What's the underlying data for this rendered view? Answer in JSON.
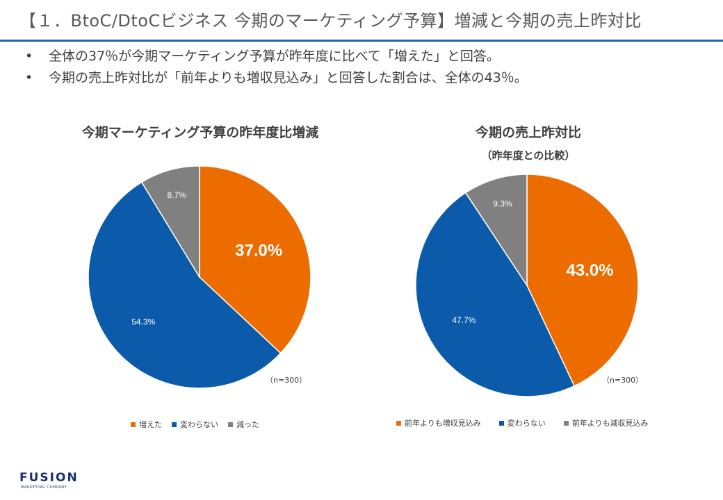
{
  "slide": {
    "title": "【１．BtoC/DtoCビジネス 今期のマーケティング予算】増減と今期の売上昨対比",
    "bullets": [
      "全体の37％が今期マーケティング予算が昨年度に比べて「増えた」と回答。",
      "今期の売上昨対比が「前年よりも増収見込み」と回答した割合は、全体の43％。"
    ],
    "bullet_marker": "•"
  },
  "chart_data": [
    {
      "type": "pie",
      "title": "今期マーケティング予算の昨年度比増減",
      "subtitle": "",
      "sample_note": "（n=300）",
      "categories": [
        "増えた",
        "変わらない",
        "減った"
      ],
      "values": [
        37.0,
        54.3,
        8.7
      ],
      "labels": [
        "37.0%",
        "54.3%",
        "8.7%"
      ],
      "colors": [
        "#ED6C00",
        "#0B5BAA",
        "#808080"
      ],
      "emphasized_label": "37.0%",
      "legend_position": "bottom"
    },
    {
      "type": "pie",
      "title": "今期の売上昨対比",
      "subtitle": "（昨年度との比較）",
      "sample_note": "（n=300）",
      "categories": [
        "前年よりも増収見込み",
        "変わらない",
        "前年よりも減収見込み"
      ],
      "values": [
        43.0,
        47.7,
        9.3
      ],
      "labels": [
        "43.0%",
        "47.7%",
        "9.3%"
      ],
      "colors": [
        "#ED6C00",
        "#0B5BAA",
        "#808080"
      ],
      "emphasized_label": "43.0%",
      "legend_position": "bottom"
    }
  ],
  "logo": {
    "name": "FUSION",
    "tagline": "MARKETING COMPANY"
  }
}
